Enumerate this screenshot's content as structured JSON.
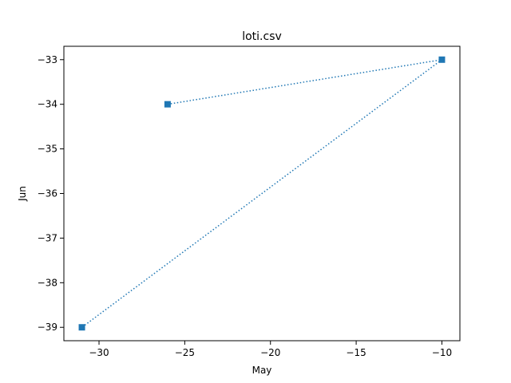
{
  "chart_data": {
    "type": "line",
    "title": "loti.csv",
    "xlabel": "May",
    "ylabel": "Jun",
    "xlim": [
      -32.05,
      -8.95
    ],
    "ylim": [
      -39.3,
      -32.7
    ],
    "xticks": [
      -30,
      -25,
      -20,
      -15,
      -10
    ],
    "yticks": [
      -39,
      -38,
      -37,
      -36,
      -35,
      -34,
      -33
    ],
    "xtick_labels": [
      "−30",
      "−25",
      "−20",
      "−15",
      "−10"
    ],
    "ytick_labels": [
      "−39",
      "−38",
      "−37",
      "−36",
      "−35",
      "−34",
      "−33"
    ],
    "grid": false,
    "series": [
      {
        "x": [
          -26,
          -10,
          -31
        ],
        "y": [
          -34,
          -33,
          -39
        ],
        "line_style": "dotted",
        "marker": "square",
        "color": "#1f77b4"
      }
    ]
  }
}
